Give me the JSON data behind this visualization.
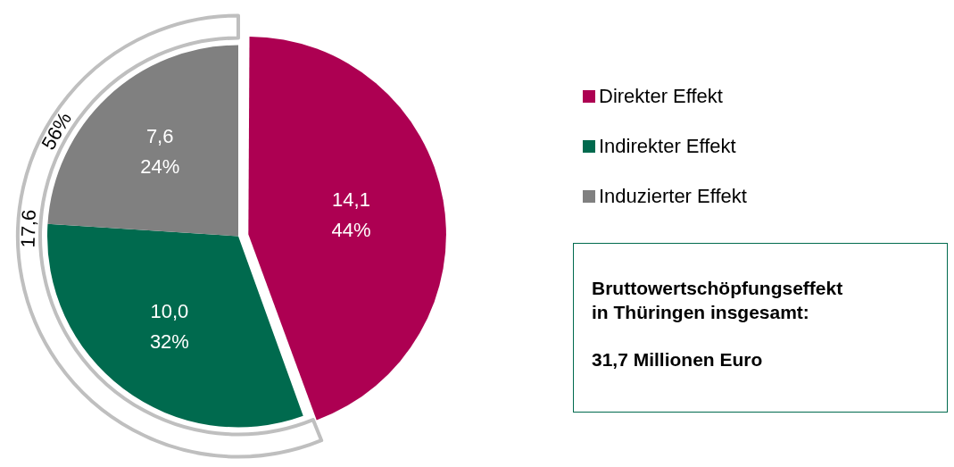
{
  "chart_data": {
    "type": "pie",
    "categories": [
      "Direkter Effekt",
      "Indirekter Effekt",
      "Induzierter Effekt"
    ],
    "values": [
      14.1,
      10.0,
      7.6
    ],
    "colors": [
      "#ad0052",
      "#006a4e",
      "#808080"
    ],
    "value_labels": [
      "14,1\n44%",
      "10,0\n32%",
      "7,6\n24%"
    ],
    "legend": "right",
    "annotations": [
      "17,6",
      "56%",
      "Bruttowertschöpfungseffekt\nin Thüringen insgesamt:",
      "31,7 Millionen Euro"
    ]
  }
}
